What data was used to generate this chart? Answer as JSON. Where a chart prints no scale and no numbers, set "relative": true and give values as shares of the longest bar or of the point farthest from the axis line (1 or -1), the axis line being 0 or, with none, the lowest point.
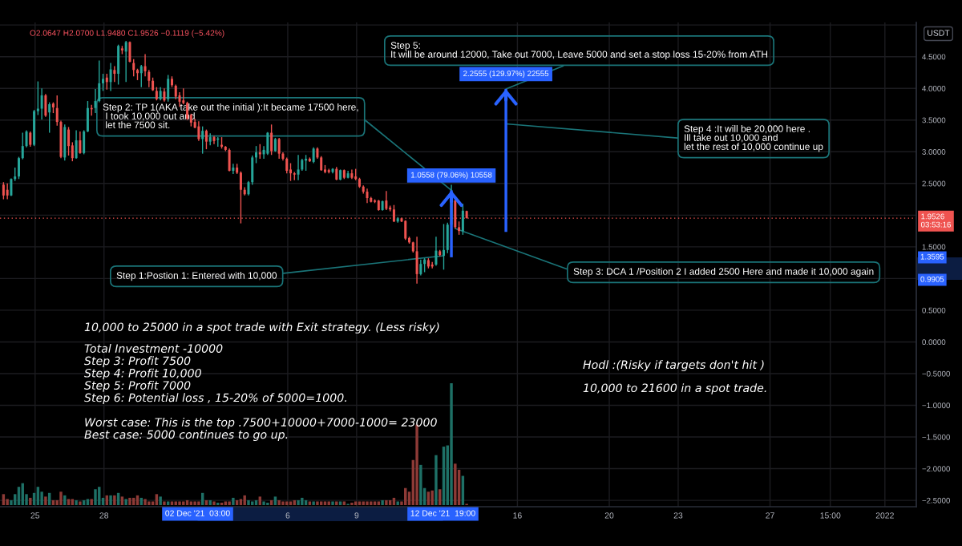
{
  "chart_data": [
    {
      "type": "candlestick",
      "x": [
        "2021-11-23T15:00",
        "2021-11-23T19:00",
        "2021-11-23T23:00",
        "2021-11-24T03:00",
        "2021-11-24T07:00",
        "2021-11-24T11:00",
        "2021-11-24T15:00",
        "2021-11-24T19:00",
        "2021-11-24T23:00",
        "2021-11-25T03:00",
        "2021-11-25T07:00",
        "2021-11-25T11:00",
        "2021-11-25T15:00",
        "2021-11-25T19:00",
        "2021-11-25T23:00",
        "2021-11-26T03:00",
        "2021-11-26T07:00",
        "2021-11-26T11:00",
        "2021-11-26T15:00",
        "2021-11-26T19:00",
        "2021-11-26T23:00",
        "2021-11-27T03:00",
        "2021-11-27T07:00",
        "2021-11-27T11:00",
        "2021-11-27T15:00",
        "2021-11-27T19:00",
        "2021-11-27T23:00",
        "2021-11-28T03:00",
        "2021-11-28T07:00",
        "2021-11-28T11:00",
        "2021-11-28T15:00",
        "2021-11-28T19:00",
        "2021-11-28T23:00",
        "2021-11-29T03:00",
        "2021-11-29T07:00",
        "2021-11-29T11:00",
        "2021-11-29T15:00",
        "2021-11-29T19:00",
        "2021-11-29T23:00",
        "2021-11-30T03:00",
        "2021-11-30T07:00",
        "2021-11-30T11:00",
        "2021-11-30T15:00",
        "2021-11-30T19:00",
        "2021-11-30T23:00",
        "2021-12-01T03:00",
        "2021-12-01T07:00",
        "2021-12-01T11:00",
        "2021-12-01T15:00",
        "2021-12-01T19:00",
        "2021-12-01T23:00",
        "2021-12-02T03:00",
        "2021-12-02T07:00",
        "2021-12-02T11:00",
        "2021-12-02T15:00",
        "2021-12-02T19:00",
        "2021-12-02T23:00",
        "2021-12-03T03:00",
        "2021-12-03T07:00",
        "2021-12-03T11:00",
        "2021-12-03T15:00",
        "2021-12-03T19:00",
        "2021-12-03T23:00",
        "2021-12-04T03:00",
        "2021-12-04T07:00",
        "2021-12-04T11:00",
        "2021-12-04T15:00",
        "2021-12-04T19:00",
        "2021-12-04T23:00",
        "2021-12-05T03:00",
        "2021-12-05T07:00",
        "2021-12-05T11:00",
        "2021-12-05T15:00",
        "2021-12-05T19:00",
        "2021-12-05T23:00",
        "2021-12-06T03:00",
        "2021-12-06T07:00",
        "2021-12-06T11:00",
        "2021-12-06T15:00",
        "2021-12-06T19:00",
        "2021-12-06T23:00",
        "2021-12-07T03:00",
        "2021-12-07T07:00",
        "2021-12-07T11:00",
        "2021-12-07T15:00",
        "2021-12-07T19:00",
        "2021-12-07T23:00",
        "2021-12-08T03:00",
        "2021-12-08T07:00",
        "2021-12-08T11:00",
        "2021-12-08T15:00",
        "2021-12-08T19:00",
        "2021-12-08T23:00",
        "2021-12-09T03:00",
        "2021-12-09T07:00",
        "2021-12-09T11:00",
        "2021-12-09T15:00",
        "2021-12-09T19:00",
        "2021-12-09T23:00",
        "2021-12-10T03:00",
        "2021-12-10T07:00",
        "2021-12-10T11:00",
        "2021-12-10T15:00",
        "2021-12-10T19:00",
        "2021-12-10T23:00",
        "2021-12-11T03:00",
        "2021-12-11T07:00",
        "2021-12-11T11:00",
        "2021-12-11T15:00",
        "2021-12-11T19:00",
        "2021-12-11T23:00",
        "2021-12-12T03:00",
        "2021-12-12T07:00",
        "2021-12-12T11:00",
        "2021-12-12T15:00",
        "2021-12-12T19:00",
        "2021-12-12T23:00",
        "2021-12-13T03:00",
        "2021-12-13T07:00",
        "2021-12-13T11:00",
        "2021-12-13T15:00",
        "2021-12-13T19:00"
      ],
      "ohlc": [
        [
          2.48,
          2.52,
          2.25,
          2.31
        ],
        [
          2.4,
          2.5,
          2.25,
          2.31
        ],
        [
          2.31,
          2.58,
          2.3,
          2.57
        ],
        [
          2.57,
          2.75,
          2.54,
          2.61
        ],
        [
          2.61,
          2.92,
          2.57,
          2.9
        ],
        [
          2.9,
          3.3,
          2.88,
          3.09
        ],
        [
          3.09,
          3.34,
          3.07,
          3.32
        ],
        [
          3.3,
          3.32,
          3.08,
          3.11
        ],
        [
          3.11,
          3.66,
          3.09,
          3.64
        ],
        [
          3.64,
          4.11,
          3.58,
          3.68
        ],
        [
          3.68,
          4.0,
          3.51,
          3.89
        ],
        [
          3.89,
          3.91,
          3.55,
          3.57
        ],
        [
          3.62,
          3.78,
          3.3,
          3.75
        ],
        [
          3.76,
          3.78,
          3.61,
          3.7
        ],
        [
          3.69,
          3.89,
          3.41,
          3.47
        ],
        [
          3.47,
          3.49,
          2.9,
          2.92
        ],
        [
          2.91,
          3.43,
          2.86,
          3.39
        ],
        [
          3.35,
          3.39,
          2.94,
          3.09
        ],
        [
          3.1,
          3.15,
          2.85,
          2.9
        ],
        [
          2.9,
          3.34,
          2.89,
          3.18
        ],
        [
          3.18,
          3.32,
          2.97,
          2.98
        ],
        [
          2.98,
          3.34,
          2.96,
          3.32
        ],
        [
          3.32,
          3.8,
          3.31,
          3.69
        ],
        [
          3.69,
          3.74,
          3.57,
          3.67
        ],
        [
          3.69,
          3.99,
          3.61,
          3.8
        ],
        [
          3.8,
          4.44,
          3.78,
          4.08
        ],
        [
          4.08,
          4.23,
          3.96,
          4.15
        ],
        [
          4.17,
          4.23,
          3.98,
          4.1
        ],
        [
          4.1,
          4.4,
          3.96,
          4.3
        ],
        [
          4.29,
          4.35,
          4.1,
          4.23
        ],
        [
          4.23,
          4.69,
          4.06,
          4.67
        ],
        [
          4.63,
          4.67,
          4.54,
          4.6
        ],
        [
          4.58,
          4.75,
          4.1,
          4.73
        ],
        [
          4.73,
          4.74,
          4.41,
          4.42
        ],
        [
          4.4,
          4.46,
          4.19,
          4.29
        ],
        [
          4.29,
          4.31,
          4.13,
          4.24
        ],
        [
          4.24,
          4.37,
          4.02,
          4.35
        ],
        [
          4.35,
          4.54,
          4.19,
          4.27
        ],
        [
          4.26,
          4.29,
          4.02,
          4.12
        ],
        [
          4.12,
          4.17,
          3.96,
          3.97
        ],
        [
          3.96,
          4.02,
          3.81,
          3.83
        ],
        [
          3.83,
          4.02,
          3.81,
          3.96
        ],
        [
          3.95,
          4.0,
          3.79,
          3.81
        ],
        [
          3.83,
          4.21,
          3.79,
          4.15
        ],
        [
          4.15,
          4.19,
          4.02,
          4.05
        ],
        [
          4.04,
          4.06,
          3.83,
          3.87
        ],
        [
          3.89,
          3.94,
          3.71,
          3.79
        ],
        [
          3.81,
          4.0,
          3.75,
          3.77
        ],
        [
          3.77,
          3.79,
          3.5,
          3.52
        ],
        [
          3.58,
          3.6,
          3.4,
          3.46
        ],
        [
          3.47,
          3.52,
          3.37,
          3.38
        ],
        [
          3.4,
          3.48,
          3.17,
          3.2
        ],
        [
          3.2,
          3.4,
          2.97,
          3.33
        ],
        [
          3.33,
          3.35,
          3.04,
          3.16
        ],
        [
          3.16,
          3.29,
          3.1,
          3.23
        ],
        [
          3.23,
          3.25,
          3.12,
          3.17
        ],
        [
          3.19,
          3.23,
          3.08,
          3.21
        ],
        [
          3.11,
          3.23,
          3.05,
          3.08
        ],
        [
          3.08,
          3.09,
          3.01,
          3.03
        ],
        [
          3.03,
          3.05,
          2.69,
          2.7
        ],
        [
          2.7,
          2.81,
          2.65,
          2.75
        ],
        [
          2.75,
          2.81,
          2.65,
          2.67
        ],
        [
          2.67,
          2.69,
          1.87,
          2.4
        ],
        [
          2.4,
          2.44,
          2.31,
          2.33
        ],
        [
          2.33,
          2.54,
          2.31,
          2.52
        ],
        [
          2.52,
          2.94,
          2.48,
          2.91
        ],
        [
          2.91,
          3.09,
          2.82,
          2.99
        ],
        [
          2.99,
          3.12,
          2.89,
          2.96
        ],
        [
          2.96,
          3.09,
          2.89,
          3.03
        ],
        [
          2.97,
          3.31,
          2.95,
          3.3
        ],
        [
          3.3,
          3.43,
          2.95,
          3.01
        ],
        [
          3.01,
          3.22,
          3.0,
          3.2
        ],
        [
          3.2,
          3.22,
          2.89,
          2.97
        ],
        [
          2.97,
          2.99,
          2.86,
          2.89
        ],
        [
          2.89,
          2.91,
          2.66,
          2.7
        ],
        [
          2.72,
          2.82,
          2.54,
          2.66
        ],
        [
          2.66,
          2.68,
          2.55,
          2.64
        ],
        [
          2.64,
          2.95,
          2.55,
          2.72
        ],
        [
          2.72,
          2.89,
          2.7,
          2.87
        ],
        [
          2.86,
          2.95,
          2.7,
          2.89
        ],
        [
          2.89,
          2.91,
          2.84,
          2.85
        ],
        [
          2.84,
          3.07,
          2.82,
          3.05
        ],
        [
          3.05,
          3.07,
          2.89,
          2.91
        ],
        [
          2.91,
          2.93,
          2.7,
          2.71
        ],
        [
          2.72,
          2.79,
          2.66,
          2.68
        ],
        [
          2.71,
          2.73,
          2.66,
          2.68
        ],
        [
          2.68,
          2.74,
          2.66,
          2.73
        ],
        [
          2.73,
          2.76,
          2.55,
          2.56
        ],
        [
          2.56,
          2.72,
          2.55,
          2.71
        ],
        [
          2.71,
          2.72,
          2.57,
          2.59
        ],
        [
          2.59,
          2.7,
          2.58,
          2.66
        ],
        [
          2.66,
          2.72,
          2.57,
          2.59
        ],
        [
          2.61,
          2.73,
          2.55,
          2.57
        ],
        [
          2.57,
          2.59,
          2.43,
          2.45
        ],
        [
          2.45,
          2.47,
          2.34,
          2.37
        ],
        [
          2.37,
          2.42,
          2.19,
          2.27
        ],
        [
          2.27,
          2.29,
          2.2,
          2.21
        ],
        [
          2.23,
          2.25,
          2.19,
          2.21
        ],
        [
          2.23,
          2.24,
          2.07,
          2.08
        ],
        [
          2.08,
          2.23,
          2.07,
          2.22
        ],
        [
          2.23,
          2.38,
          2.08,
          2.1
        ],
        [
          2.12,
          2.15,
          2.06,
          2.09
        ],
        [
          2.09,
          2.16,
          1.89,
          1.9
        ],
        [
          1.9,
          1.97,
          1.88,
          1.95
        ],
        [
          1.95,
          1.96,
          1.89,
          1.9
        ],
        [
          1.91,
          1.92,
          1.61,
          1.63
        ],
        [
          1.64,
          1.66,
          1.55,
          1.57
        ],
        [
          1.57,
          1.58,
          1.41,
          1.43
        ],
        [
          1.43,
          1.66,
          0.92,
          1.07
        ],
        [
          1.07,
          1.3,
          1.05,
          1.23
        ],
        [
          1.23,
          1.32,
          1.1,
          1.3
        ],
        [
          1.29,
          1.32,
          1.16,
          1.19
        ],
        [
          1.22,
          1.26,
          1.16,
          1.19
        ],
        [
          1.22,
          1.66,
          1.2,
          1.44
        ],
        [
          1.43,
          1.45,
          1.35,
          1.37
        ],
        [
          1.3595,
          1.86,
          1.14,
          1.45
        ],
        [
          1.45,
          1.88,
          1.4,
          1.85
        ],
        [
          1.85,
          2.48,
          1.83,
          2.23
        ],
        [
          2.23,
          2.25,
          1.79,
          1.81
        ],
        [
          1.81,
          1.9,
          1.69,
          1.75
        ],
        [
          1.75,
          2.18,
          1.69,
          2.07
        ],
        [
          2.0647,
          2.07,
          1.948,
          1.9526
        ]
      ],
      "colors": [
        "#ef5350",
        "#ef5350",
        "#26a69a",
        "#26a69a",
        "#26a69a",
        "#26a69a",
        "#26a69a",
        "#ef5350",
        "#26a69a",
        "#26a69a",
        "#26a69a",
        "#ef5350",
        "#26a69a",
        "#ef5350",
        "#ef5350",
        "#ef5350",
        "#26a69a",
        "#ef5350",
        "#ef5350",
        "#26a69a",
        "#ef5350",
        "#26a69a",
        "#26a69a",
        "#ef5350",
        "#26a69a",
        "#26a69a",
        "#26a69a",
        "#ef5350",
        "#26a69a",
        "#ef5350",
        "#26a69a",
        "#ef5350",
        "#26a69a",
        "#ef5350",
        "#ef5350",
        "#ef5350",
        "#26a69a",
        "#ef5350",
        "#ef5350",
        "#ef5350",
        "#ef5350",
        "#26a69a",
        "#ef5350",
        "#26a69a",
        "#ef5350",
        "#ef5350",
        "#ef5350",
        "#ef5350",
        "#ef5350",
        "#ef5350",
        "#ef5350",
        "#ef5350",
        "#26a69a",
        "#ef5350",
        "#26a69a",
        "#ef5350",
        "#26a69a",
        "#ef5350",
        "#ef5350",
        "#ef5350",
        "#26a69a",
        "#ef5350",
        "#ef5350",
        "#ef5350",
        "#26a69a",
        "#26a69a",
        "#26a69a",
        "#ef5350",
        "#26a69a",
        "#26a69a",
        "#ef5350",
        "#26a69a",
        "#ef5350",
        "#ef5350",
        "#ef5350",
        "#ef5350",
        "#ef5350",
        "#26a69a",
        "#26a69a",
        "#26a69a",
        "#ef5350",
        "#26a69a",
        "#ef5350",
        "#ef5350",
        "#ef5350",
        "#ef5350",
        "#26a69a",
        "#ef5350",
        "#26a69a",
        "#ef5350",
        "#26a69a",
        "#ef5350",
        "#ef5350",
        "#ef5350",
        "#ef5350",
        "#ef5350",
        "#ef5350",
        "#ef5350",
        "#ef5350",
        "#26a69a",
        "#ef5350",
        "#ef5350",
        "#ef5350",
        "#26a69a",
        "#ef5350",
        "#ef5350",
        "#ef5350",
        "#ef5350",
        "#ef5350",
        "#26a69a",
        "#26a69a",
        "#ef5350",
        "#ef5350",
        "#26a69a",
        "#ef5350",
        "#26a69a",
        "#26a69a",
        "#26a69a",
        "#ef5350",
        "#ef5350",
        "#26a69a",
        "#ef5350"
      ],
      "series": [
        {
          "type": "bar",
          "x": [
            "2021-12-13T03:00"
          ],
          "base": [
            1.3354
          ],
          "values": [
            1.0558
          ],
          "color": "#2962ff",
          "value_labels": [
            "1.0558 (79.06%) 10558"
          ]
        },
        {
          "type": "bar",
          "x": [
            "2021-12-15T12:00"
          ],
          "base": [
            1.7354
          ],
          "values": [
            2.2555
          ],
          "color": "#2962ff",
          "value_labels": [
            "2.2555 (129.97%) 22555"
          ]
        }
      ],
      "xlim": [
        "2021-11-23T11:20",
        "2022-01-02T08:50"
      ],
      "ylim": [
        -2.6,
        5.04
      ],
      "xticks": [
        {
          "value": "2021-11-25",
          "label": "25"
        },
        {
          "value": "2021-11-28",
          "label": "28"
        },
        {
          "value": "2021-12-06",
          "label": "6"
        },
        {
          "value": "2021-12-09",
          "label": "9"
        },
        {
          "value": "2021-12-16",
          "label": "16"
        },
        {
          "value": "2021-12-20",
          "label": "20"
        },
        {
          "value": "2021-12-23",
          "label": "23"
        },
        {
          "value": "2021-12-27",
          "label": "27"
        },
        {
          "value": "2021-12-29T15:00",
          "label": "15:00"
        },
        {
          "value": "2022-01-01",
          "label": "2022"
        }
      ],
      "yticks": [
        {
          "value": 5,
          "label": null
        },
        {
          "value": 4.5,
          "label": "4.5000"
        },
        {
          "value": 4,
          "label": "4.0000"
        },
        {
          "value": 3.5,
          "label": "3.5000"
        },
        {
          "value": 3,
          "label": "3.0000"
        },
        {
          "value": 2.5,
          "label": "2.5000"
        },
        {
          "value": 2,
          "label": null
        },
        {
          "value": 1.5,
          "label": "1.5000"
        },
        {
          "value": 1,
          "label": null
        },
        {
          "value": 0.5,
          "label": "0.5000"
        },
        {
          "value": 0,
          "label": "0.0000"
        },
        {
          "value": -0.5,
          "label": "−0.5000"
        },
        {
          "value": -1,
          "label": "−1.0000"
        },
        {
          "value": -1.5,
          "label": "−1.5000"
        },
        {
          "value": -2,
          "label": "−2.0000"
        },
        {
          "value": -2.5,
          "label": "−2.5000"
        }
      ],
      "ylabel": "USDT",
      "grid": true,
      "ref_lines": [
        {
          "axis": "y",
          "value": 1.9526,
          "label": "1.9526\n03:53:16",
          "color": "#ef5350",
          "line_style": "dotted"
        }
      ],
      "annotations": [
        "O2.0647 H2.0700 L1.9480 C1.9526 −0.1119 (−5.42%)",
        {
          "text": "Step 2: TP 1(AKA take out the initial ):It became 17500 here,\n I took 10,000 out and\n let the 7500 sit.",
          "x": "2021-12-13T03:00",
          "y": 2.3912
        },
        {
          "text": "Step 5:\nIt will be around 12000, Take out 7000, Leave 5000 and set a stop loss 15-20% from ATH",
          "x": "2021-12-15T12:00",
          "y": 3.9909
        },
        {
          "text": "Step 4 :It will be 20,000 here .\nIll take out 10,000 and\nlet the rest of 10,000 continue up",
          "x": "2021-12-15T12:00",
          "y": 3.44
        },
        {
          "text": "Step 1:Postion 1: Entered with 10,000",
          "x": "2021-12-12T19:00",
          "y": 1.3595
        },
        {
          "text": "Step 3: DCA 1 /Position 2 I added 2500 Here and made it 10,000 again",
          "x": "2021-12-13T07:00",
          "y": 1.79
        },
        "10,000 to 25000 in a spot trade with Exit strategy. (Less risky)",
        "Total Investment -10000\nStep 3: Profit 7500\nStep 4: Profit 10,000\nStep 5: Profit 7000\nStep 6: Potential loss , 15-20% of 5000=1000.\n\nWorst case: This is the top .7500+10000+7000-1000= 23000\nBest case: 5000 continues to go up.",
        "Hodl :(Risky if targets don't hit )",
        "10,000 to 21600 in a spot trade.",
        "1.3595",
        "0.9905",
        "02 Dec '21  03:00",
        "12 Dec '21  19:00"
      ]
    },
    {
      "type": "bar",
      "x": [
        "2021-11-23T15:00",
        "2021-11-23T19:00",
        "2021-11-23T23:00",
        "2021-11-24T03:00",
        "2021-11-24T07:00",
        "2021-11-24T11:00",
        "2021-11-24T15:00",
        "2021-11-24T19:00",
        "2021-11-24T23:00",
        "2021-11-25T03:00",
        "2021-11-25T07:00",
        "2021-11-25T11:00",
        "2021-11-25T15:00",
        "2021-11-25T19:00",
        "2021-11-25T23:00",
        "2021-11-26T03:00",
        "2021-11-26T07:00",
        "2021-11-26T11:00",
        "2021-11-26T15:00",
        "2021-11-26T19:00",
        "2021-11-26T23:00",
        "2021-11-27T03:00",
        "2021-11-27T07:00",
        "2021-11-27T11:00",
        "2021-11-27T15:00",
        "2021-11-27T19:00",
        "2021-11-27T23:00",
        "2021-11-28T03:00",
        "2021-11-28T07:00",
        "2021-11-28T11:00",
        "2021-11-28T15:00",
        "2021-11-28T19:00",
        "2021-11-28T23:00",
        "2021-11-29T03:00",
        "2021-11-29T07:00",
        "2021-11-29T11:00",
        "2021-11-29T15:00",
        "2021-11-29T19:00",
        "2021-11-29T23:00",
        "2021-11-30T03:00",
        "2021-11-30T07:00",
        "2021-11-30T11:00",
        "2021-11-30T15:00",
        "2021-11-30T19:00",
        "2021-11-30T23:00",
        "2021-12-01T03:00",
        "2021-12-01T07:00",
        "2021-12-01T11:00",
        "2021-12-01T15:00",
        "2021-12-01T19:00",
        "2021-12-01T23:00",
        "2021-12-02T03:00",
        "2021-12-02T07:00",
        "2021-12-02T11:00",
        "2021-12-02T15:00",
        "2021-12-02T19:00",
        "2021-12-02T23:00",
        "2021-12-03T03:00",
        "2021-12-03T07:00",
        "2021-12-03T11:00",
        "2021-12-03T15:00",
        "2021-12-03T19:00",
        "2021-12-03T23:00",
        "2021-12-04T03:00",
        "2021-12-04T07:00",
        "2021-12-04T11:00",
        "2021-12-04T15:00",
        "2021-12-04T19:00",
        "2021-12-04T23:00",
        "2021-12-05T03:00",
        "2021-12-05T07:00",
        "2021-12-05T11:00",
        "2021-12-05T15:00",
        "2021-12-05T19:00",
        "2021-12-05T23:00",
        "2021-12-06T03:00",
        "2021-12-06T07:00",
        "2021-12-06T11:00",
        "2021-12-06T15:00",
        "2021-12-06T19:00",
        "2021-12-06T23:00",
        "2021-12-07T03:00",
        "2021-12-07T07:00",
        "2021-12-07T11:00",
        "2021-12-07T15:00",
        "2021-12-07T19:00",
        "2021-12-07T23:00",
        "2021-12-08T03:00",
        "2021-12-08T07:00",
        "2021-12-08T11:00",
        "2021-12-08T15:00",
        "2021-12-08T19:00",
        "2021-12-08T23:00",
        "2021-12-09T03:00",
        "2021-12-09T07:00",
        "2021-12-09T11:00",
        "2021-12-09T15:00",
        "2021-12-09T19:00",
        "2021-12-09T23:00",
        "2021-12-10T03:00",
        "2021-12-10T07:00",
        "2021-12-10T11:00",
        "2021-12-10T15:00",
        "2021-12-10T19:00",
        "2021-12-10T23:00",
        "2021-12-11T03:00",
        "2021-12-11T07:00",
        "2021-12-11T11:00",
        "2021-12-11T15:00",
        "2021-12-11T19:00",
        "2021-12-11T23:00",
        "2021-12-12T03:00",
        "2021-12-12T07:00",
        "2021-12-12T11:00",
        "2021-12-12T15:00",
        "2021-12-12T19:00",
        "2021-12-12T23:00",
        "2021-12-13T03:00",
        "2021-12-13T07:00",
        "2021-12-13T11:00",
        "2021-12-13T15:00",
        "2021-12-13T19:00"
      ],
      "values": [
        0.09,
        0.05,
        0.04,
        0.09,
        0.15,
        0.18,
        0.09,
        0.06,
        0.1,
        0.15,
        0.11,
        0.07,
        0.1,
        0.04,
        0.04,
        0.11,
        0.08,
        0.05,
        0.05,
        0.04,
        0.03,
        0.04,
        0.05,
        0.05,
        0.13,
        0.15,
        0.06,
        0.08,
        0.08,
        0.08,
        0.1,
        0.07,
        0.05,
        0.06,
        0.06,
        0.08,
        0.06,
        0.05,
        0.03,
        0.03,
        0.09,
        0.07,
        0.03,
        0.03,
        0.03,
        0.03,
        0.03,
        0.03,
        0.04,
        0.03,
        0.03,
        0.03,
        0.1,
        0.04,
        0.04,
        0.03,
        0.02,
        0.02,
        0.03,
        0.03,
        0.06,
        0.04,
        0.05,
        0.08,
        0.04,
        0.03,
        0.04,
        0.07,
        0.03,
        0.02,
        0.04,
        0.07,
        0.04,
        0.03,
        0.03,
        0.03,
        0.04,
        0.04,
        0.06,
        0.04,
        0.03,
        0.03,
        0.03,
        0.03,
        0.03,
        0.03,
        0.03,
        0.03,
        0.03,
        0.03,
        0.01,
        0.02,
        0.03,
        0.03,
        0.03,
        0.03,
        0.03,
        0.03,
        0.03,
        0.04,
        0.04,
        0.04,
        0.06,
        0.03,
        0.03,
        0.14,
        0.11,
        0.37,
        0.66,
        0.33,
        0.14,
        0.11,
        0.12,
        0.41,
        0.13,
        0.48,
        0.49,
        1,
        0.34,
        0.29,
        0.24,
        0.01
      ],
      "colors": [
        "#8d3a36",
        "#8d3a36",
        "#1e7066",
        "#1e7066",
        "#1e7066",
        "#1e7066",
        "#1e7066",
        "#8d3a36",
        "#1e7066",
        "#1e7066",
        "#1e7066",
        "#8d3a36",
        "#1e7066",
        "#8d3a36",
        "#8d3a36",
        "#8d3a36",
        "#1e7066",
        "#8d3a36",
        "#8d3a36",
        "#1e7066",
        "#8d3a36",
        "#1e7066",
        "#1e7066",
        "#8d3a36",
        "#1e7066",
        "#1e7066",
        "#1e7066",
        "#8d3a36",
        "#1e7066",
        "#8d3a36",
        "#1e7066",
        "#8d3a36",
        "#1e7066",
        "#8d3a36",
        "#8d3a36",
        "#8d3a36",
        "#1e7066",
        "#8d3a36",
        "#8d3a36",
        "#8d3a36",
        "#8d3a36",
        "#1e7066",
        "#8d3a36",
        "#1e7066",
        "#8d3a36",
        "#8d3a36",
        "#8d3a36",
        "#8d3a36",
        "#8d3a36",
        "#8d3a36",
        "#8d3a36",
        "#8d3a36",
        "#1e7066",
        "#8d3a36",
        "#1e7066",
        "#8d3a36",
        "#1e7066",
        "#8d3a36",
        "#8d3a36",
        "#8d3a36",
        "#1e7066",
        "#8d3a36",
        "#8d3a36",
        "#8d3a36",
        "#1e7066",
        "#1e7066",
        "#1e7066",
        "#8d3a36",
        "#1e7066",
        "#1e7066",
        "#8d3a36",
        "#1e7066",
        "#8d3a36",
        "#8d3a36",
        "#8d3a36",
        "#8d3a36",
        "#8d3a36",
        "#1e7066",
        "#1e7066",
        "#1e7066",
        "#8d3a36",
        "#1e7066",
        "#8d3a36",
        "#8d3a36",
        "#8d3a36",
        "#8d3a36",
        "#1e7066",
        "#8d3a36",
        "#1e7066",
        "#8d3a36",
        "#1e7066",
        "#8d3a36",
        "#8d3a36",
        "#8d3a36",
        "#8d3a36",
        "#8d3a36",
        "#8d3a36",
        "#8d3a36",
        "#8d3a36",
        "#1e7066",
        "#8d3a36",
        "#8d3a36",
        "#8d3a36",
        "#1e7066",
        "#8d3a36",
        "#8d3a36",
        "#8d3a36",
        "#8d3a36",
        "#8d3a36",
        "#1e7066",
        "#1e7066",
        "#8d3a36",
        "#8d3a36",
        "#1e7066",
        "#8d3a36",
        "#1e7066",
        "#1e7066",
        "#1e7066",
        "#8d3a36",
        "#8d3a36",
        "#1e7066",
        "#8d3a36"
      ],
      "relative": true,
      "xlim": [
        "2021-11-23T11:20",
        "2022-01-02T08:50"
      ],
      "tick_labels": false
    }
  ]
}
